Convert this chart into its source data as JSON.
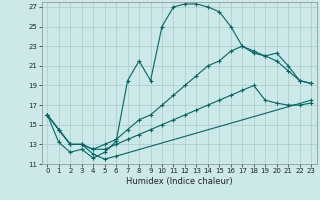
{
  "xlabel": "Humidex (Indice chaleur)",
  "bg_color": "#cce8e8",
  "grid_color": "#aacccc",
  "line_color": "#006666",
  "xlim": [
    -0.5,
    23.5
  ],
  "ylim": [
    11,
    27.5
  ],
  "xticks": [
    0,
    1,
    2,
    3,
    4,
    5,
    6,
    7,
    8,
    9,
    10,
    11,
    12,
    13,
    14,
    15,
    16,
    17,
    18,
    19,
    20,
    21,
    22,
    23
  ],
  "yticks": [
    11,
    13,
    15,
    17,
    19,
    21,
    23,
    25,
    27
  ],
  "curve1_x": [
    0,
    1,
    2,
    3,
    4,
    5,
    6,
    7,
    8,
    9,
    10,
    11,
    12,
    13,
    14,
    15,
    16,
    17,
    18,
    19,
    20,
    21,
    22,
    23
  ],
  "curve1_y": [
    16.0,
    13.2,
    12.2,
    12.5,
    11.6,
    12.2,
    13.3,
    19.5,
    21.5,
    19.5,
    25.0,
    27.0,
    27.3,
    27.3,
    27.0,
    26.5,
    25.0,
    23.0,
    22.5,
    22.0,
    21.5,
    20.5,
    19.5,
    19.2
  ],
  "curve2_x": [
    0,
    1,
    2,
    3,
    4,
    5,
    6,
    7,
    8,
    9,
    10,
    11,
    12,
    13,
    14,
    15,
    16,
    17,
    18,
    19,
    20,
    21,
    22,
    23
  ],
  "curve2_y": [
    16.0,
    14.5,
    13.0,
    13.0,
    12.5,
    13.0,
    13.5,
    14.5,
    15.5,
    16.0,
    17.0,
    18.0,
    19.0,
    20.0,
    21.0,
    21.5,
    22.5,
    23.0,
    22.3,
    22.0,
    22.3,
    21.0,
    19.5,
    19.2
  ],
  "curve3_x": [
    0,
    1,
    2,
    3,
    4,
    5,
    6,
    7,
    8,
    9,
    10,
    11,
    12,
    13,
    14,
    15,
    16,
    17,
    18,
    19,
    20,
    21,
    22,
    23
  ],
  "curve3_y": [
    16.0,
    14.5,
    13.0,
    13.0,
    12.5,
    12.5,
    13.0,
    13.5,
    14.0,
    14.5,
    15.0,
    15.5,
    16.0,
    16.5,
    17.0,
    17.5,
    18.0,
    18.5,
    19.0,
    17.5,
    17.2,
    17.0,
    17.0,
    17.2
  ],
  "curve4_x": [
    0,
    1,
    2,
    3,
    4,
    5,
    6,
    23
  ],
  "curve4_y": [
    16.0,
    14.5,
    13.0,
    13.0,
    12.0,
    11.5,
    11.8,
    17.5
  ]
}
